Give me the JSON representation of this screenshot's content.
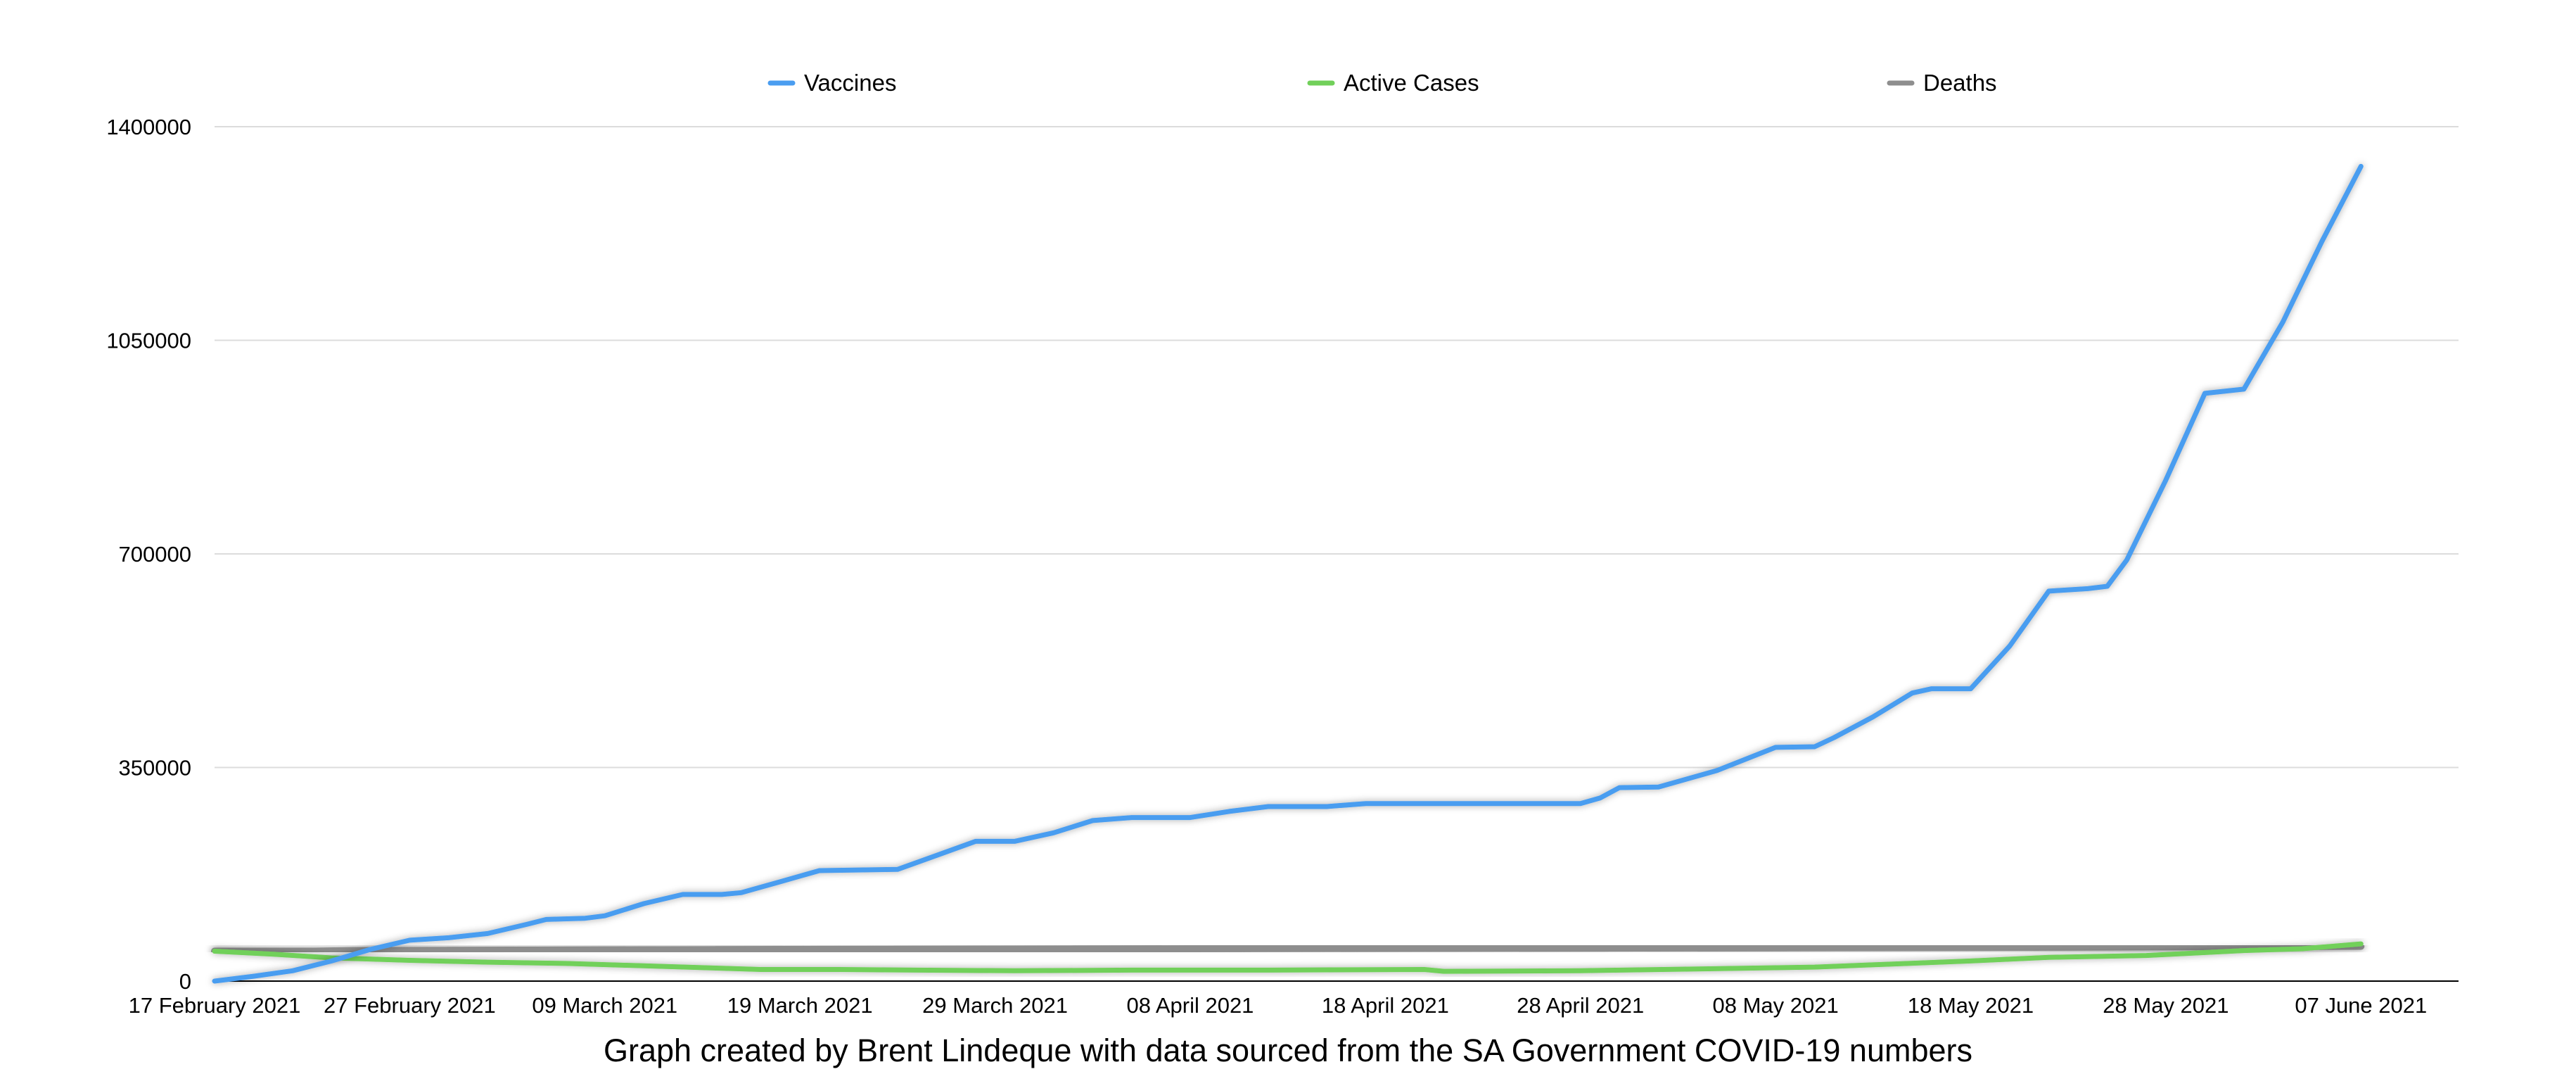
{
  "chart_data": {
    "type": "line",
    "caption": "Graph created by Brent Lindeque with data sourced from the SA Government COVID-19 numbers",
    "ylim": [
      0,
      1400000
    ],
    "yticks": [
      0,
      350000,
      700000,
      1050000,
      1400000
    ],
    "ytick_labels": [
      "0",
      "350000",
      "700000",
      "1050000",
      "1400000"
    ],
    "x_start": "17 February 2021",
    "x_end": "12 June 2021",
    "xticks": [
      "17 February 2021",
      "27 February 2021",
      "09 March 2021",
      "19 March 2021",
      "29 March 2021",
      "08 April 2021",
      "18 April 2021",
      "28 April 2021",
      "08 May 2021",
      "18 May 2021",
      "28 May 2021",
      "07 June 2021"
    ],
    "grid": "horizontal",
    "legend_position": "top",
    "series": [
      {
        "name": "Vaccines",
        "color": "#4a9df0",
        "points": [
          [
            "17 February 2021",
            0
          ],
          [
            "19 February 2021",
            8000
          ],
          [
            "21 February 2021",
            17000
          ],
          [
            "23 February 2021",
            33000
          ],
          [
            "25 February 2021",
            52000
          ],
          [
            "27 February 2021",
            67000
          ],
          [
            "01 March 2021",
            71000
          ],
          [
            "03 March 2021",
            78000
          ],
          [
            "05 March 2021",
            93000
          ],
          [
            "06 March 2021",
            101000
          ],
          [
            "08 March 2021",
            103000
          ],
          [
            "09 March 2021",
            107000
          ],
          [
            "11 March 2021",
            127000
          ],
          [
            "13 March 2021",
            142000
          ],
          [
            "15 March 2021",
            142000
          ],
          [
            "16 March 2021",
            145000
          ],
          [
            "18 March 2021",
            163000
          ],
          [
            "20 March 2021",
            181000
          ],
          [
            "24 March 2021",
            183000
          ],
          [
            "26 March 2021",
            206000
          ],
          [
            "28 March 2021",
            229000
          ],
          [
            "30 March 2021",
            229000
          ],
          [
            "01 April 2021",
            243000
          ],
          [
            "03 April 2021",
            263000
          ],
          [
            "05 April 2021",
            268000
          ],
          [
            "08 April 2021",
            268000
          ],
          [
            "10 April 2021",
            278000
          ],
          [
            "12 April 2021",
            286000
          ],
          [
            "15 April 2021",
            286000
          ],
          [
            "17 April 2021",
            291000
          ],
          [
            "28 April 2021",
            291000
          ],
          [
            "29 April 2021",
            300000
          ],
          [
            "30 April 2021",
            317000
          ],
          [
            "02 May 2021",
            318000
          ],
          [
            "05 May 2021",
            345000
          ],
          [
            "08 May 2021",
            383000
          ],
          [
            "10 May 2021",
            384000
          ],
          [
            "11 May 2021",
            399000
          ],
          [
            "13 May 2021",
            433000
          ],
          [
            "15 May 2021",
            472000
          ],
          [
            "16 May 2021",
            479000
          ],
          [
            "18 May 2021",
            479000
          ],
          [
            "20 May 2021",
            549000
          ],
          [
            "22 May 2021",
            639000
          ],
          [
            "24 May 2021",
            643000
          ],
          [
            "25 May 2021",
            647000
          ],
          [
            "26 May 2021",
            690000
          ],
          [
            "28 May 2021",
            821000
          ],
          [
            "30 May 2021",
            963000
          ],
          [
            "01 June 2021",
            970000
          ],
          [
            "03 June 2021",
            1080000
          ],
          [
            "05 June 2021",
            1212000
          ],
          [
            "07 June 2021",
            1335000
          ]
        ]
      },
      {
        "name": "Active Cases",
        "color": "#71d05a",
        "points": [
          [
            "17 February 2021",
            49000
          ],
          [
            "20 February 2021",
            44000
          ],
          [
            "23 February 2021",
            38000
          ],
          [
            "27 February 2021",
            34000
          ],
          [
            "03 March 2021",
            31000
          ],
          [
            "07 March 2021",
            29000
          ],
          [
            "11 March 2021",
            25000
          ],
          [
            "15 March 2021",
            21000
          ],
          [
            "17 March 2021",
            19000
          ],
          [
            "21 March 2021",
            19000
          ],
          [
            "25 March 2021",
            18000
          ],
          [
            "30 March 2021",
            17000
          ],
          [
            "05 April 2021",
            18000
          ],
          [
            "12 April 2021",
            18000
          ],
          [
            "20 April 2021",
            19000
          ],
          [
            "21 April 2021",
            16000
          ],
          [
            "28 April 2021",
            17000
          ],
          [
            "04 May 2021",
            20000
          ],
          [
            "10 May 2021",
            23000
          ],
          [
            "14 May 2021",
            28000
          ],
          [
            "18 May 2021",
            33000
          ],
          [
            "22 May 2021",
            39000
          ],
          [
            "27 May 2021",
            42000
          ],
          [
            "01 June 2021",
            50000
          ],
          [
            "04 June 2021",
            53000
          ],
          [
            "07 June 2021",
            61000
          ]
        ]
      },
      {
        "name": "Deaths",
        "color": "#8e8e8e",
        "points": [
          [
            "17 February 2021",
            49000
          ],
          [
            "22 February 2021",
            49000
          ],
          [
            "24 February 2021",
            50000
          ],
          [
            "07 March 2021",
            51000
          ],
          [
            "20 March 2021",
            52000
          ],
          [
            "08 April 2021",
            53000
          ],
          [
            "28 April 2021",
            54000
          ],
          [
            "18 May 2021",
            55000
          ],
          [
            "28 May 2021",
            56000
          ],
          [
            "07 June 2021",
            57000
          ]
        ]
      }
    ]
  }
}
